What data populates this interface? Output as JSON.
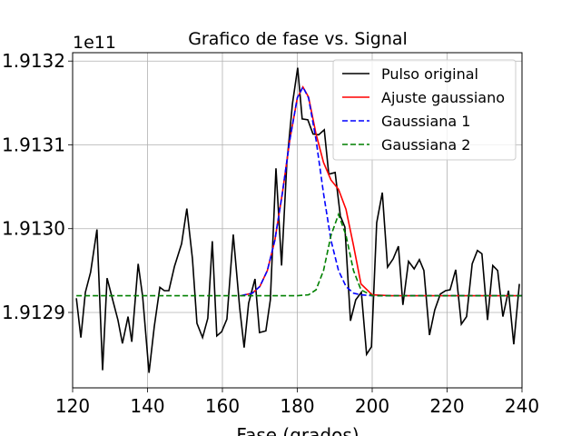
{
  "chart_data": {
    "type": "line",
    "title": "Grafico de fase vs. Signal",
    "x_label": "Fase (grados)",
    "y_offset_label": "1e11",
    "xlim": [
      120,
      240
    ],
    "xticks": [
      120,
      140,
      160,
      180,
      200,
      220,
      240
    ],
    "ylim": [
      1.91281,
      1.91321
    ],
    "yticks": [
      {
        "value": 1.9129,
        "label": "1.9129"
      },
      {
        "value": 1.913,
        "label": "1.9130"
      },
      {
        "value": 1.9131,
        "label": "1.9131"
      },
      {
        "value": 1.9132,
        "label": "1.9132"
      }
    ],
    "grid": true,
    "legend": "upper right",
    "series": [
      {
        "name": "Pulso original",
        "color": "#000000",
        "linestyle": "solid",
        "x": [
          121.0,
          122.2,
          123.4,
          124.8,
          126.5,
          128.0,
          129.2,
          130.7,
          132.1,
          133.3,
          134.8,
          135.8,
          137.5,
          138.7,
          140.4,
          141.8,
          143.3,
          144.5,
          145.7,
          147.2,
          149.1,
          150.5,
          152.0,
          153.2,
          154.7,
          156.1,
          157.3,
          158.5,
          159.8,
          161.2,
          162.9,
          164.6,
          165.8,
          167.0,
          168.7,
          169.9,
          171.6,
          172.8,
          174.3,
          175.8,
          177.2,
          178.7,
          180.1,
          181.3,
          182.8,
          184.2,
          185.7,
          187.2,
          188.4,
          190.1,
          191.5,
          192.7,
          194.2,
          195.6,
          197.1,
          198.5,
          199.8,
          201.2,
          202.7,
          204.1,
          205.6,
          207.0,
          208.2,
          209.7,
          211.2,
          212.6,
          213.8,
          215.3,
          216.7,
          218.2,
          219.6,
          220.8,
          222.3,
          223.8,
          225.2,
          226.7,
          228.1,
          229.3,
          230.8,
          232.2,
          233.5,
          234.9,
          236.4,
          237.8,
          239.3
        ],
        "values": [
          1.912917,
          1.91287,
          1.912924,
          1.912948,
          1.912999,
          1.912831,
          1.912941,
          1.912915,
          1.912891,
          1.912863,
          1.912895,
          1.912865,
          1.912958,
          1.912919,
          1.912828,
          1.912883,
          1.91293,
          1.912926,
          1.912926,
          1.912955,
          1.912982,
          1.913024,
          1.912964,
          1.912887,
          1.91287,
          1.912893,
          1.912985,
          1.912872,
          1.912877,
          1.912892,
          1.912993,
          1.912906,
          1.912858,
          1.912911,
          1.91294,
          1.912876,
          1.912878,
          1.912915,
          1.913072,
          1.912956,
          1.913078,
          1.913149,
          1.913192,
          1.913131,
          1.91313,
          1.913113,
          1.913112,
          1.913118,
          1.913065,
          1.913067,
          1.913015,
          1.913002,
          1.91289,
          1.912915,
          1.912924,
          1.91285,
          1.912859,
          1.913007,
          1.913043,
          1.912954,
          1.912964,
          1.912979,
          1.912909,
          1.912961,
          1.912952,
          1.912963,
          1.91295,
          1.912873,
          1.912903,
          1.912922,
          1.912926,
          1.912927,
          1.912951,
          1.912886,
          1.912895,
          1.912958,
          1.912974,
          1.91297,
          1.912891,
          1.912956,
          1.91295,
          1.912895,
          1.912926,
          1.912862,
          1.912934
        ]
      },
      {
        "name": "Ajuste gaussiano",
        "color": "#ff0000",
        "linestyle": "solid",
        "x": [
          165,
          168,
          170,
          172,
          174,
          176,
          178,
          180,
          181.5,
          183,
          185,
          187,
          189,
          191,
          193,
          195,
          197,
          200,
          205,
          210,
          220,
          240
        ],
        "values": [
          1.91292,
          1.912923,
          1.912931,
          1.91295,
          1.912986,
          1.913042,
          1.913106,
          1.913156,
          1.913169,
          1.913157,
          1.913113,
          1.913079,
          1.913058,
          1.913047,
          1.913023,
          1.91298,
          1.912934,
          1.912921,
          1.91292,
          1.91292,
          1.91292,
          1.91292
        ]
      },
      {
        "name": "Gaussiana 1",
        "color": "#0000ff",
        "linestyle": "dashed",
        "x": [
          165,
          168,
          170,
          172,
          174,
          176,
          178,
          180,
          181.5,
          183,
          185,
          187,
          189,
          191,
          193,
          195,
          197,
          200,
          205,
          210,
          220,
          240
        ],
        "values": [
          1.91292,
          1.912923,
          1.912931,
          1.91295,
          1.912986,
          1.913042,
          1.913106,
          1.913156,
          1.913169,
          1.913156,
          1.913106,
          1.913042,
          1.912986,
          1.91295,
          1.912931,
          1.912923,
          1.912921,
          1.91292,
          1.91292,
          1.91292,
          1.91292,
          1.91292
        ]
      },
      {
        "name": "Gaussiana 2",
        "color": "#008000",
        "linestyle": "dashed",
        "x": [
          121,
          180,
          183,
          185,
          187,
          189,
          191,
          193,
          195,
          197,
          200,
          240
        ],
        "values": [
          1.91292,
          1.91292,
          1.912921,
          1.912927,
          1.91295,
          1.912992,
          1.913017,
          1.912992,
          1.91295,
          1.912927,
          1.91292,
          1.91292
        ]
      }
    ]
  }
}
